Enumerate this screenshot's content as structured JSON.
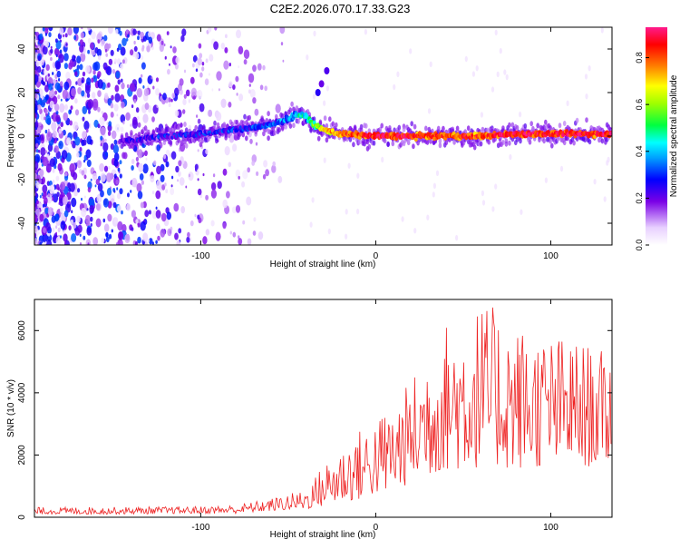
{
  "title": "C2E2.2026.070.17.33.G23",
  "colors": {
    "snr_line": "#ee2222",
    "frame": "#000000",
    "background": "#ffffff"
  },
  "chart_data": [
    {
      "type": "heatmap",
      "name": "spectrogram",
      "title": "C2E2.2026.070.17.33.G23",
      "xlabel": "Height of straight line (km)",
      "ylabel": "Frequency (Hz)",
      "xlim": [
        -195,
        135
      ],
      "ylim": [
        -50,
        50
      ],
      "xticks": [
        -100,
        0,
        100
      ],
      "yticks": [
        -40,
        -20,
        0,
        20,
        40
      ],
      "xtick_labels": [
        "-100",
        "0",
        "100"
      ],
      "ytick_labels": [
        "-40",
        "-20",
        "0",
        "20",
        "40"
      ],
      "signal_trace": {
        "x": [
          -140,
          -120,
          -100,
          -80,
          -60,
          -50,
          -45,
          -40,
          -35,
          -30,
          -20,
          0,
          20,
          40,
          60,
          80,
          100,
          120,
          135
        ],
        "y": [
          -2,
          0,
          1,
          3,
          5,
          8,
          10,
          9,
          5,
          3,
          1,
          0,
          0,
          0,
          0,
          1,
          1,
          1,
          1
        ],
        "amplitude": [
          0.25,
          0.28,
          0.3,
          0.3,
          0.35,
          0.4,
          0.45,
          0.45,
          0.6,
          0.7,
          0.8,
          0.9,
          0.88,
          0.85,
          0.85,
          0.9,
          0.9,
          0.9,
          0.9
        ]
      },
      "colorbar": {
        "label": "Normalized spectral amplitude",
        "range": [
          0,
          0.93
        ],
        "ticks": [
          0.0,
          0.2,
          0.4,
          0.6,
          0.8
        ],
        "tick_labels": [
          "0.0",
          "0.2",
          "0.4",
          "0.6",
          "0.8"
        ]
      }
    },
    {
      "type": "line",
      "name": "snr",
      "xlabel": "Height of straight line (km)",
      "ylabel": "SNR (10 * v/v)",
      "xlim": [
        -195,
        135
      ],
      "ylim": [
        0,
        7000
      ],
      "xticks": [
        -100,
        0,
        100
      ],
      "yticks": [
        0,
        2000,
        4000,
        6000
      ],
      "xtick_labels": [
        "-100",
        "0",
        "100"
      ],
      "ytick_labels": [
        "0",
        "2000",
        "4000",
        "6000"
      ],
      "envelope": {
        "x": [
          -195,
          -150,
          -100,
          -80,
          -60,
          -40,
          -35,
          -30,
          -20,
          -10,
          0,
          10,
          20,
          30,
          40,
          50,
          60,
          70,
          80,
          90,
          100,
          110,
          120,
          135
        ],
        "low": [
          100,
          100,
          120,
          120,
          200,
          250,
          300,
          350,
          450,
          550,
          700,
          800,
          1100,
          1300,
          1500,
          1500,
          1600,
          1600,
          1500,
          1600,
          1600,
          1700,
          1600,
          1800
        ],
        "high": [
          320,
          330,
          350,
          400,
          600,
          900,
          1300,
          1700,
          2300,
          2800,
          3200,
          3700,
          4400,
          5600,
          6300,
          6600,
          6900,
          6700,
          6300,
          6000,
          5900,
          5800,
          5600,
          5200
        ]
      }
    }
  ]
}
